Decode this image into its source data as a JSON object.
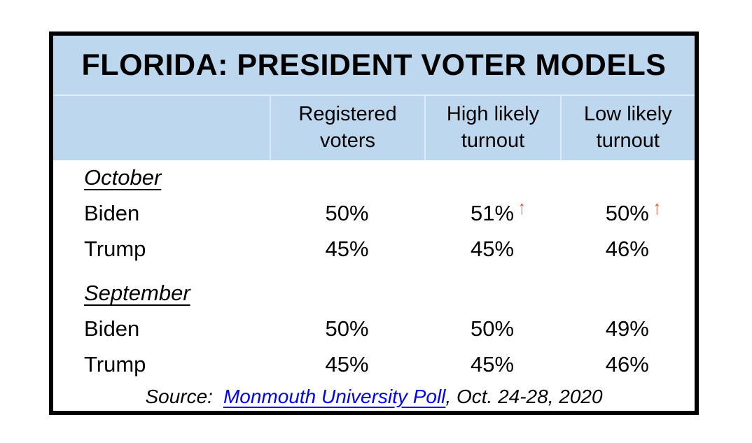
{
  "colors": {
    "header_blue": "#BDD7EE",
    "arrow_orange": "#E8502A",
    "link_blue": "#0000FF",
    "border_black": "#000000"
  },
  "icons": {
    "up_arrow": "↑"
  },
  "chart_data": {
    "type": "table",
    "title": "FLORIDA: PRESIDENT VOTER MODELS",
    "columns": [
      "Registered voters",
      "High likely turnout",
      "Low likely turnout"
    ],
    "column_lines": [
      [
        "Registered",
        "voters"
      ],
      [
        "High likely",
        "turnout"
      ],
      [
        "Low likely",
        "turnout"
      ]
    ],
    "sections": [
      {
        "label": "October",
        "rows": [
          {
            "name": "Biden",
            "registered": "50%",
            "high_likely": "51%",
            "high_likely_arrow": true,
            "low_likely": "50%",
            "low_likely_arrow": true
          },
          {
            "name": "Trump",
            "registered": "45%",
            "high_likely": "45%",
            "low_likely": "46%"
          }
        ]
      },
      {
        "label": "September",
        "rows": [
          {
            "name": "Biden",
            "registered": "50%",
            "high_likely": "50%",
            "low_likely": "49%"
          },
          {
            "name": "Trump",
            "registered": "45%",
            "high_likely": "45%",
            "low_likely": "46%"
          }
        ]
      }
    ],
    "source": {
      "prefix": "Source:",
      "link_text": "Monmouth University Poll",
      "suffix": ", Oct. 24-28, 2020"
    }
  }
}
